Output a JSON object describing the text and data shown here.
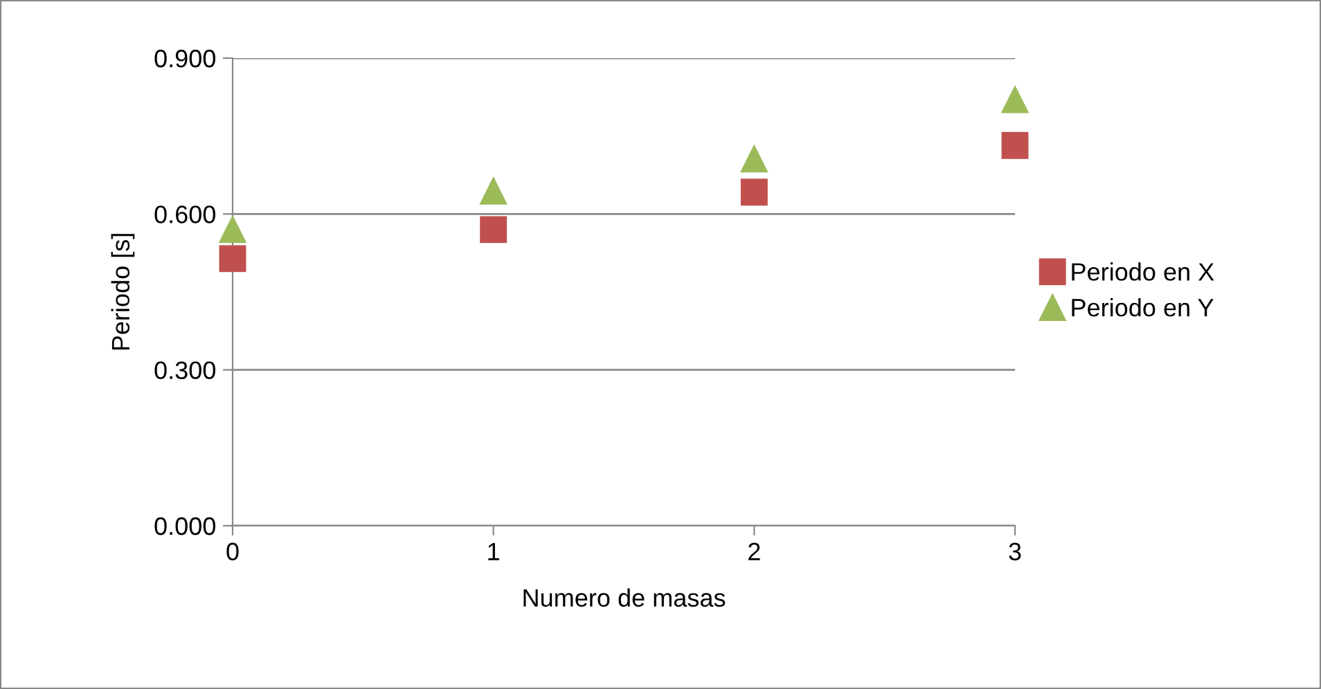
{
  "chart_data": {
    "type": "scatter",
    "xlabel": "Numero de masas",
    "ylabel": "Periodo [s]",
    "x": [
      0,
      1,
      2,
      3
    ],
    "series": [
      {
        "name": "Periodo en X",
        "color": "#c0504d",
        "marker": "square",
        "values": [
          0.514,
          0.57,
          0.642,
          0.732
        ]
      },
      {
        "name": "Periodo en Y",
        "color": "#9bbb59",
        "marker": "triangle",
        "values": [
          0.57,
          0.644,
          0.706,
          0.82
        ]
      }
    ],
    "xlim": [
      0,
      3
    ],
    "xticks": [
      0,
      1,
      2,
      3
    ],
    "ylim": [
      0,
      0.9
    ],
    "yticks": [
      {
        "value": 0,
        "label": "0.000"
      },
      {
        "value": 0.3,
        "label": "0.300"
      },
      {
        "value": 0.6,
        "label": "0.600"
      },
      {
        "value": 0.9,
        "label": "0.900"
      }
    ],
    "grid": "y",
    "legend": "right"
  }
}
